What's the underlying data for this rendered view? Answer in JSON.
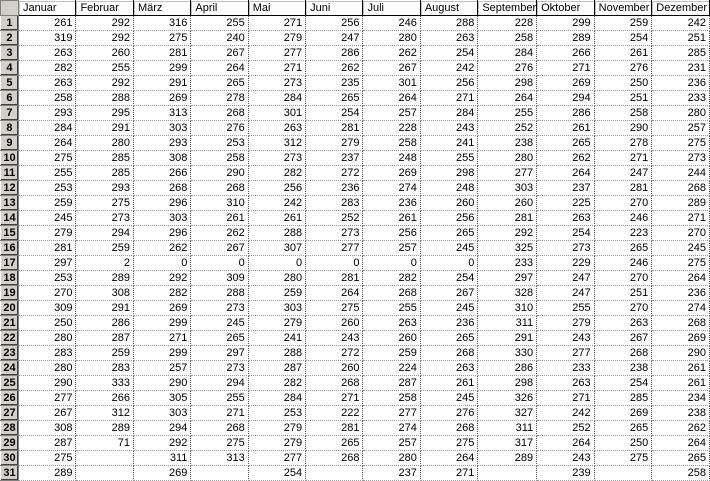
{
  "columns": [
    "Januar",
    "Februar",
    "März",
    "April",
    "Mai",
    "Juni",
    "Juli",
    "August",
    "September",
    "Oktober",
    "November",
    "Dezember"
  ],
  "rows": [
    [
      "261",
      "292",
      "316",
      "255",
      "271",
      "256",
      "246",
      "288",
      "228",
      "299",
      "259",
      "242"
    ],
    [
      "319",
      "292",
      "275",
      "240",
      "279",
      "247",
      "280",
      "263",
      "258",
      "289",
      "254",
      "251"
    ],
    [
      "263",
      "260",
      "281",
      "267",
      "277",
      "286",
      "262",
      "254",
      "284",
      "266",
      "261",
      "285"
    ],
    [
      "282",
      "255",
      "299",
      "264",
      "271",
      "262",
      "267",
      "242",
      "276",
      "271",
      "276",
      "231"
    ],
    [
      "263",
      "292",
      "291",
      "265",
      "273",
      "235",
      "301",
      "256",
      "298",
      "269",
      "250",
      "236"
    ],
    [
      "258",
      "288",
      "269",
      "278",
      "284",
      "265",
      "264",
      "271",
      "264",
      "294",
      "251",
      "233"
    ],
    [
      "293",
      "295",
      "313",
      "268",
      "301",
      "254",
      "257",
      "284",
      "255",
      "286",
      "258",
      "280"
    ],
    [
      "284",
      "291",
      "303",
      "276",
      "263",
      "281",
      "228",
      "243",
      "252",
      "261",
      "290",
      "257"
    ],
    [
      "264",
      "280",
      "293",
      "253",
      "312",
      "279",
      "258",
      "241",
      "238",
      "265",
      "278",
      "275"
    ],
    [
      "275",
      "285",
      "308",
      "258",
      "273",
      "237",
      "248",
      "255",
      "280",
      "262",
      "271",
      "273"
    ],
    [
      "255",
      "285",
      "266",
      "290",
      "282",
      "272",
      "269",
      "298",
      "277",
      "264",
      "247",
      "244"
    ],
    [
      "253",
      "293",
      "268",
      "268",
      "256",
      "236",
      "274",
      "248",
      "303",
      "237",
      "281",
      "268"
    ],
    [
      "259",
      "275",
      "296",
      "310",
      "242",
      "283",
      "236",
      "260",
      "260",
      "225",
      "270",
      "289"
    ],
    [
      "245",
      "273",
      "303",
      "261",
      "261",
      "252",
      "261",
      "256",
      "281",
      "263",
      "246",
      "271"
    ],
    [
      "279",
      "294",
      "296",
      "262",
      "288",
      "273",
      "256",
      "265",
      "292",
      "254",
      "223",
      "270"
    ],
    [
      "281",
      "259",
      "262",
      "267",
      "307",
      "277",
      "257",
      "245",
      "325",
      "273",
      "265",
      "245"
    ],
    [
      "297",
      "2",
      "0",
      "0",
      "0",
      "0",
      "0",
      "0",
      "233",
      "229",
      "246",
      "275"
    ],
    [
      "253",
      "289",
      "292",
      "309",
      "280",
      "281",
      "282",
      "254",
      "297",
      "247",
      "270",
      "264"
    ],
    [
      "270",
      "308",
      "282",
      "288",
      "259",
      "264",
      "268",
      "267",
      "328",
      "247",
      "251",
      "236"
    ],
    [
      "309",
      "291",
      "269",
      "273",
      "303",
      "275",
      "255",
      "245",
      "310",
      "255",
      "270",
      "274"
    ],
    [
      "250",
      "286",
      "299",
      "245",
      "279",
      "260",
      "263",
      "236",
      "311",
      "279",
      "263",
      "268"
    ],
    [
      "280",
      "287",
      "271",
      "265",
      "241",
      "243",
      "260",
      "265",
      "291",
      "243",
      "267",
      "269"
    ],
    [
      "283",
      "259",
      "299",
      "297",
      "288",
      "272",
      "259",
      "268",
      "330",
      "277",
      "268",
      "290"
    ],
    [
      "280",
      "283",
      "257",
      "273",
      "287",
      "260",
      "224",
      "263",
      "286",
      "233",
      "238",
      "261"
    ],
    [
      "290",
      "333",
      "290",
      "294",
      "282",
      "268",
      "287",
      "261",
      "298",
      "263",
      "254",
      "261"
    ],
    [
      "277",
      "266",
      "305",
      "255",
      "284",
      "271",
      "258",
      "245",
      "326",
      "271",
      "285",
      "234"
    ],
    [
      "267",
      "312",
      "303",
      "271",
      "253",
      "222",
      "277",
      "276",
      "327",
      "242",
      "269",
      "238"
    ],
    [
      "308",
      "289",
      "294",
      "268",
      "279",
      "281",
      "274",
      "268",
      "311",
      "252",
      "265",
      "262"
    ],
    [
      "287",
      "71",
      "292",
      "275",
      "279",
      "265",
      "257",
      "275",
      "317",
      "264",
      "250",
      "264"
    ],
    [
      "275",
      "",
      "311",
      "313",
      "277",
      "268",
      "280",
      "264",
      "289",
      "243",
      "275",
      "265"
    ],
    [
      "289",
      "",
      "269",
      "",
      "254",
      "",
      "237",
      "271",
      "",
      "239",
      "",
      "258"
    ]
  ]
}
